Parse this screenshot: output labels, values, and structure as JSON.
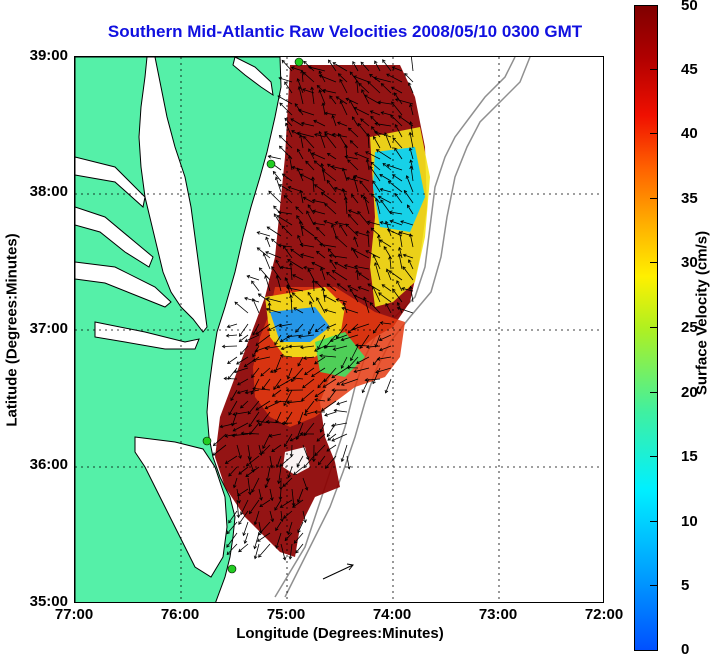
{
  "title": "Southern Mid-Atlantic Raw Velocities 2008/05/10 0300 GMT",
  "xlabel": "Longitude (Degrees:Minutes)",
  "ylabel": "Latitude (Degrees:Minutes)",
  "xticks": [
    "77:00",
    "76:00",
    "75:00",
    "74:00",
    "73:00",
    "72:00"
  ],
  "yticks": [
    "39:00",
    "38:00",
    "37:00",
    "36:00",
    "35:00"
  ],
  "colorbar": {
    "label": "Surface Velocity (cm/s)",
    "ticks": [
      "50",
      "45",
      "40",
      "35",
      "30",
      "25",
      "20",
      "15",
      "10",
      "5",
      "0"
    ],
    "range": [
      0,
      50
    ]
  },
  "colors": {
    "land": "#55f0a8",
    "title": "#1010e0",
    "coastline": "#000000",
    "bathymetry": "#909090",
    "station": "#22cc22"
  },
  "axes": {
    "lon_range": [
      -77,
      -72
    ],
    "lat_range": [
      35,
      39
    ],
    "grid": "dotted"
  }
}
